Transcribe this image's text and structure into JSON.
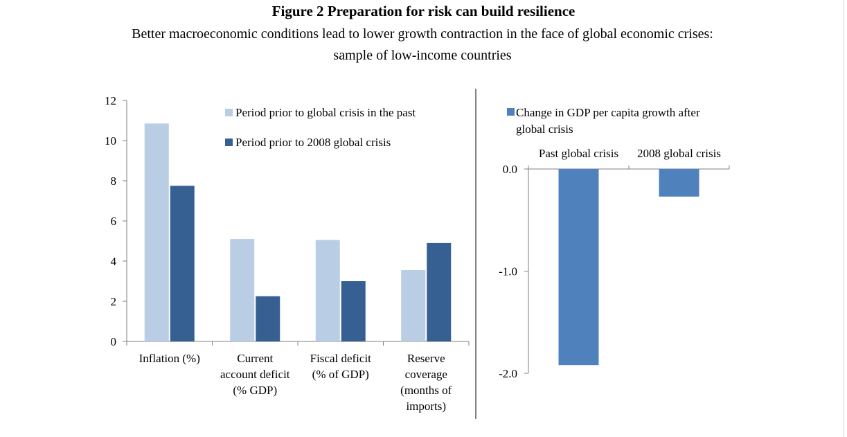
{
  "figure": {
    "title": "Figure 2  Preparation for risk can build resilience",
    "subtitle": "Better macroeconomic conditions lead to lower growth contraction in the face of global economic crises: sample of low-income countries"
  },
  "chart_data": [
    {
      "type": "bar",
      "categories": [
        [
          "Inflation (%)"
        ],
        [
          "Current",
          "account deficit",
          "(% GDP)"
        ],
        [
          "Fiscal deficit",
          "(% of GDP)"
        ],
        [
          "Reserve",
          "coverage",
          "(months of",
          "imports)"
        ]
      ],
      "series": [
        {
          "name": "Period prior to global crisis in the past",
          "values": [
            10.85,
            5.1,
            5.05,
            3.55
          ],
          "color": "#b9cde5"
        },
        {
          "name": "Period prior to 2008 global crisis",
          "values": [
            7.75,
            2.25,
            3.0,
            4.9
          ],
          "color": "#376092"
        }
      ],
      "ylim": [
        0,
        12
      ],
      "yticks": [
        "0",
        "2",
        "4",
        "6",
        "8",
        "10",
        "12"
      ],
      "grid": false,
      "legend": "top-right"
    },
    {
      "type": "bar",
      "categories": [
        "Past global crisis",
        "2008 global crisis"
      ],
      "series": [
        {
          "name": "Change in GDP per capita growth after global crisis",
          "values": [
            -1.92,
            -0.27
          ],
          "color": "#4f81bd"
        }
      ],
      "ylim": [
        -2.0,
        0.0
      ],
      "yticks": [
        "0.0",
        "-1.0",
        "-2.0"
      ],
      "grid": false,
      "legend": "top-left"
    }
  ]
}
